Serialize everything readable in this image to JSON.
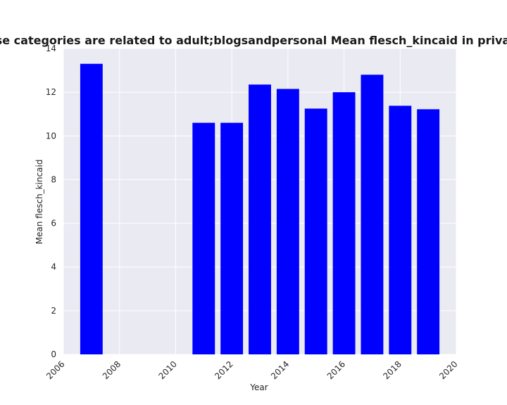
{
  "chart_data": {
    "type": "bar",
    "title": "Websites whose categories are related to adult;blogsandpersonal Mean flesch_kincaid in privacy policies by year",
    "xlabel": "Year",
    "ylabel": "Mean flesch_kincaid",
    "x": [
      2007,
      2011,
      2012,
      2013,
      2014,
      2015,
      2016,
      2017,
      2018,
      2019
    ],
    "values": [
      13.3,
      10.6,
      10.6,
      12.35,
      12.15,
      11.25,
      12.0,
      12.8,
      11.38,
      11.22
    ],
    "xlim": [
      2006,
      2020
    ],
    "ylim": [
      0,
      14
    ],
    "xticks": [
      2006,
      2008,
      2010,
      2012,
      2014,
      2016,
      2018,
      2020
    ],
    "yticks": [
      0,
      2,
      4,
      6,
      8,
      10,
      12,
      14
    ],
    "bar_color": "#0000ff",
    "plot_background": "#eaeaf2",
    "grid_color": "#ffffff",
    "grid": true
  }
}
